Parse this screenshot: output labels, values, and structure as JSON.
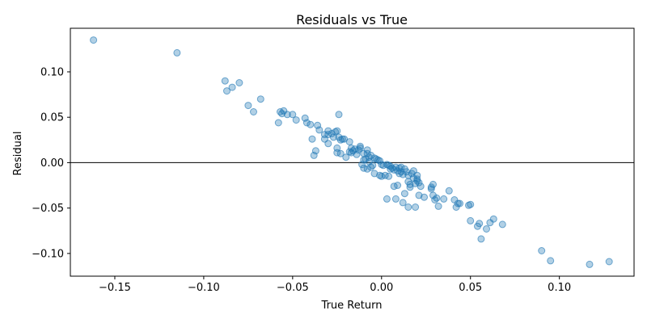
{
  "chart_data": {
    "type": "scatter",
    "title": "Residuals vs True",
    "xlabel": "True Return",
    "ylabel": "Residual",
    "xlim": [
      -0.175,
      0.142
    ],
    "ylim": [
      -0.125,
      0.148
    ],
    "xticks": [
      -0.15,
      -0.1,
      -0.05,
      0.0,
      0.05,
      0.1
    ],
    "xtick_labels": [
      "−0.15",
      "−0.10",
      "−0.05",
      "0.00",
      "0.05",
      "0.10"
    ],
    "yticks": [
      -0.1,
      -0.05,
      0.0,
      0.05,
      0.1
    ],
    "ytick_labels": [
      "−0.10",
      "−0.05",
      "0.00",
      "0.05",
      "0.10"
    ],
    "grid": false,
    "reference_line": {
      "y": 0.0,
      "color": "#000000"
    },
    "marker_color": "#1f77b4",
    "points": [
      [
        -0.162,
        0.135
      ],
      [
        -0.115,
        0.121
      ],
      [
        -0.088,
        0.09
      ],
      [
        -0.087,
        0.079
      ],
      [
        -0.084,
        0.083
      ],
      [
        -0.08,
        0.088
      ],
      [
        -0.075,
        0.063
      ],
      [
        -0.072,
        0.056
      ],
      [
        -0.068,
        0.07
      ],
      [
        -0.058,
        0.044
      ],
      [
        -0.057,
        0.056
      ],
      [
        -0.056,
        0.054
      ],
      [
        -0.055,
        0.057
      ],
      [
        -0.053,
        0.053
      ],
      [
        -0.05,
        0.053
      ],
      [
        -0.048,
        0.047
      ],
      [
        -0.043,
        0.049
      ],
      [
        -0.042,
        0.044
      ],
      [
        -0.04,
        0.042
      ],
      [
        -0.039,
        0.026
      ],
      [
        -0.038,
        0.008
      ],
      [
        -0.037,
        0.013
      ],
      [
        -0.036,
        0.041
      ],
      [
        -0.035,
        0.036
      ],
      [
        -0.032,
        0.031
      ],
      [
        -0.032,
        0.026
      ],
      [
        -0.03,
        0.035
      ],
      [
        -0.03,
        0.031
      ],
      [
        -0.03,
        0.021
      ],
      [
        -0.028,
        0.032
      ],
      [
        -0.027,
        0.028
      ],
      [
        -0.026,
        0.034
      ],
      [
        -0.025,
        0.035
      ],
      [
        -0.025,
        0.016
      ],
      [
        -0.025,
        0.011
      ],
      [
        -0.024,
        0.053
      ],
      [
        -0.024,
        0.028
      ],
      [
        -0.023,
        0.025
      ],
      [
        -0.023,
        0.01
      ],
      [
        -0.022,
        0.026
      ],
      [
        -0.021,
        0.026
      ],
      [
        -0.02,
        0.006
      ],
      [
        -0.018,
        0.023
      ],
      [
        -0.018,
        0.012
      ],
      [
        -0.017,
        0.016
      ],
      [
        -0.017,
        0.011
      ],
      [
        -0.016,
        0.013
      ],
      [
        -0.015,
        0.015
      ],
      [
        -0.014,
        0.009
      ],
      [
        -0.013,
        0.014
      ],
      [
        -0.012,
        0.018
      ],
      [
        -0.012,
        0.016
      ],
      [
        -0.011,
        -0.002
      ],
      [
        -0.01,
        0.01
      ],
      [
        -0.01,
        0.003
      ],
      [
        -0.01,
        -0.006
      ],
      [
        -0.009,
        0.004
      ],
      [
        -0.008,
        0.014
      ],
      [
        -0.008,
        0.01
      ],
      [
        -0.008,
        -0.007
      ],
      [
        -0.007,
        0.001
      ],
      [
        -0.007,
        0.006
      ],
      [
        -0.006,
        -0.005
      ],
      [
        -0.006,
        0.008
      ],
      [
        -0.005,
        -0.003
      ],
      [
        -0.004,
        0.005
      ],
      [
        -0.004,
        -0.012
      ],
      [
        -0.003,
        0.004
      ],
      [
        -0.002,
        0.003
      ],
      [
        -0.001,
        0.002
      ],
      [
        -0.001,
        -0.014
      ],
      [
        0.0,
        -0.002
      ],
      [
        0.0,
        -0.015
      ],
      [
        0.001,
        -0.003
      ],
      [
        0.002,
        -0.014
      ],
      [
        0.003,
        -0.002
      ],
      [
        0.003,
        -0.04
      ],
      [
        0.004,
        -0.015
      ],
      [
        0.004,
        -0.003
      ],
      [
        0.005,
        -0.007
      ],
      [
        0.005,
        -0.004
      ],
      [
        0.006,
        -0.006
      ],
      [
        0.007,
        -0.026
      ],
      [
        0.007,
        -0.008
      ],
      [
        0.008,
        -0.04
      ],
      [
        0.008,
        -0.005
      ],
      [
        0.009,
        -0.025
      ],
      [
        0.009,
        -0.009
      ],
      [
        0.01,
        -0.006
      ],
      [
        0.01,
        -0.012
      ],
      [
        0.011,
        -0.01
      ],
      [
        0.011,
        -0.005
      ],
      [
        0.012,
        -0.013
      ],
      [
        0.012,
        -0.044
      ],
      [
        0.013,
        -0.007
      ],
      [
        0.013,
        -0.034
      ],
      [
        0.014,
        -0.01
      ],
      [
        0.015,
        -0.021
      ],
      [
        0.015,
        -0.049
      ],
      [
        0.015,
        -0.014
      ],
      [
        0.016,
        -0.027
      ],
      [
        0.016,
        -0.024
      ],
      [
        0.017,
        -0.012
      ],
      [
        0.018,
        -0.017
      ],
      [
        0.018,
        -0.009
      ],
      [
        0.019,
        -0.049
      ],
      [
        0.019,
        -0.023
      ],
      [
        0.02,
        -0.014
      ],
      [
        0.02,
        -0.018
      ],
      [
        0.02,
        -0.02
      ],
      [
        0.021,
        -0.036
      ],
      [
        0.021,
        -0.022
      ],
      [
        0.022,
        -0.026
      ],
      [
        0.024,
        -0.038
      ],
      [
        0.028,
        -0.029
      ],
      [
        0.028,
        -0.027
      ],
      [
        0.029,
        -0.036
      ],
      [
        0.029,
        -0.024
      ],
      [
        0.03,
        -0.041
      ],
      [
        0.031,
        -0.039
      ],
      [
        0.032,
        -0.048
      ],
      [
        0.035,
        -0.04
      ],
      [
        0.038,
        -0.031
      ],
      [
        0.041,
        -0.041
      ],
      [
        0.042,
        -0.049
      ],
      [
        0.043,
        -0.045
      ],
      [
        0.044,
        -0.045
      ],
      [
        0.049,
        -0.047
      ],
      [
        0.05,
        -0.046
      ],
      [
        0.05,
        -0.064
      ],
      [
        0.054,
        -0.07
      ],
      [
        0.055,
        -0.067
      ],
      [
        0.056,
        -0.084
      ],
      [
        0.059,
        -0.073
      ],
      [
        0.061,
        -0.066
      ],
      [
        0.063,
        -0.062
      ],
      [
        0.068,
        -0.068
      ],
      [
        0.09,
        -0.097
      ],
      [
        0.095,
        -0.108
      ],
      [
        0.117,
        -0.112
      ],
      [
        0.128,
        -0.109
      ]
    ]
  }
}
